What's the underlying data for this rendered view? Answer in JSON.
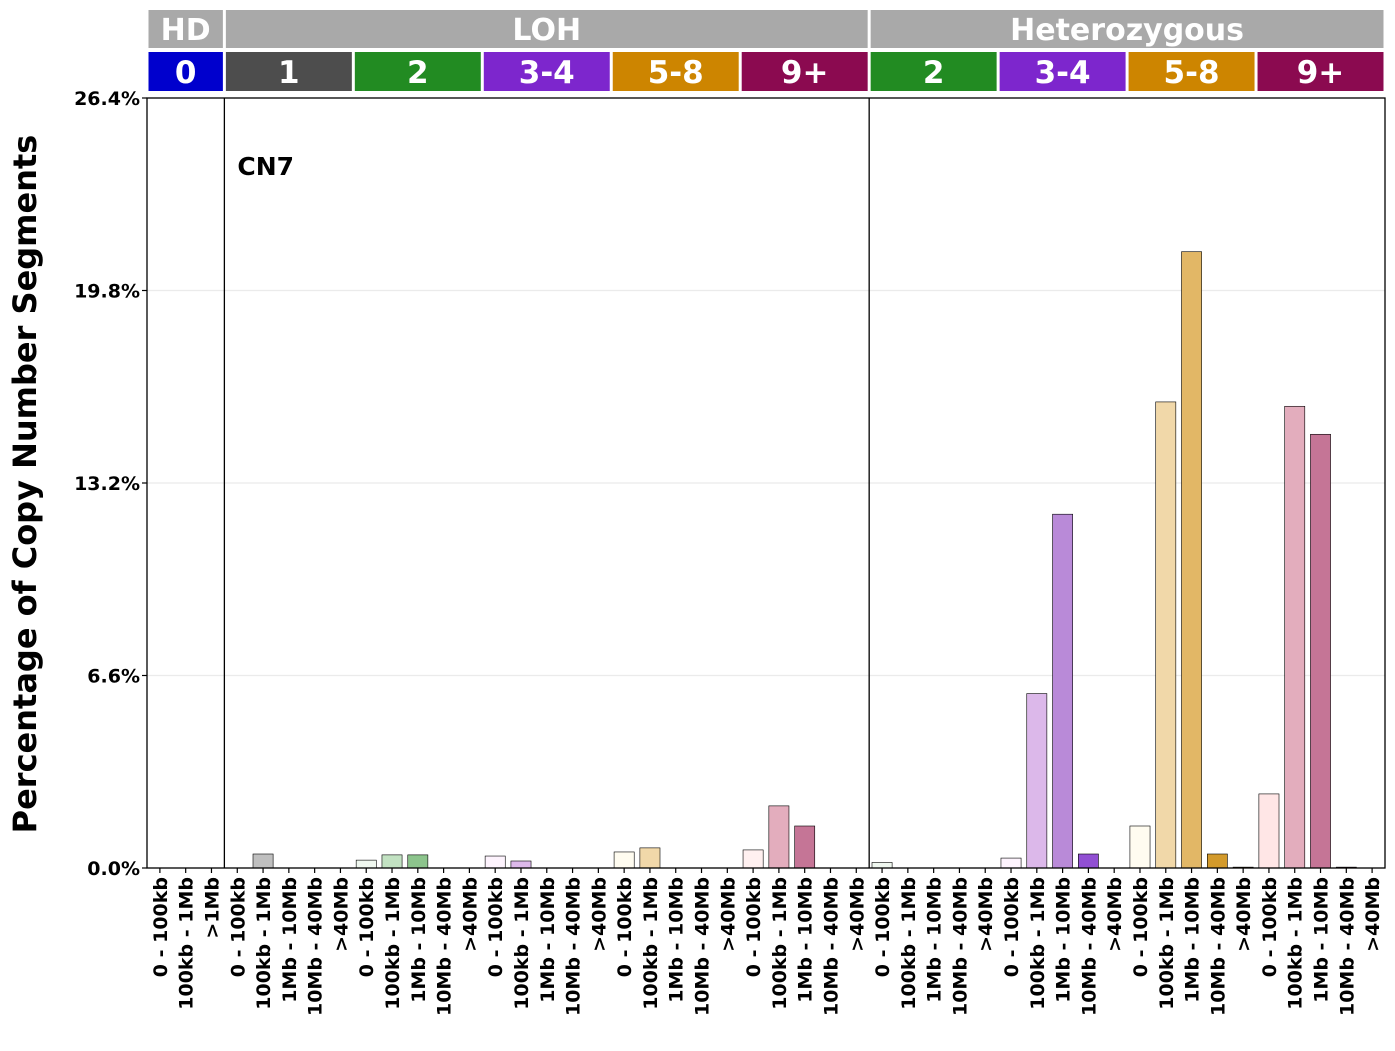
{
  "chart_data": {
    "type": "bar",
    "ylabel": "Percentage of Copy Number Segments",
    "annotation": "CN7",
    "ylim": [
      0,
      26.4
    ],
    "y_ticks": [
      "0.0%",
      "6.6%",
      "13.2%",
      "19.8%",
      "26.4%"
    ],
    "y_tick_values": [
      0,
      6.6,
      13.2,
      19.8,
      26.4
    ],
    "grid": "horizontal",
    "legend": "none",
    "top_strips": [
      {
        "label": "HD",
        "color": "#a9a9a9",
        "count": 3
      },
      {
        "label": "LOH",
        "color": "#a9a9a9",
        "count": 25
      },
      {
        "label": "Heterozygous",
        "color": "#a9a9a9",
        "count": 20
      }
    ],
    "cn_strips": [
      {
        "label": "0",
        "color": "#0000cd",
        "count": 3
      },
      {
        "label": "1",
        "color": "#4d4d4d",
        "count": 5
      },
      {
        "label": "2",
        "color": "#228b22",
        "count": 5
      },
      {
        "label": "3-4",
        "color": "#7d26cd",
        "count": 5
      },
      {
        "label": "5-8",
        "color": "#cd8500",
        "count": 5
      },
      {
        "label": "9+",
        "color": "#8b0a50",
        "count": 5
      },
      {
        "label": "2",
        "color": "#228b22",
        "count": 5
      },
      {
        "label": "3-4",
        "color": "#7d26cd",
        "count": 5
      },
      {
        "label": "5-8",
        "color": "#cd8500",
        "count": 5
      },
      {
        "label": "9+",
        "color": "#8b0a50",
        "count": 5
      }
    ],
    "categories": [
      "0 - 100kb",
      "100kb - 1Mb",
      ">1Mb",
      "0 - 100kb",
      "100kb - 1Mb",
      "1Mb - 10Mb",
      "10Mb - 40Mb",
      ">40Mb",
      "0 - 100kb",
      "100kb - 1Mb",
      "1Mb - 10Mb",
      "10Mb - 40Mb",
      ">40Mb",
      "0 - 100kb",
      "100kb - 1Mb",
      "1Mb - 10Mb",
      "10Mb - 40Mb",
      ">40Mb",
      "0 - 100kb",
      "100kb - 1Mb",
      "1Mb - 10Mb",
      "10Mb - 40Mb",
      ">40Mb",
      "0 - 100kb",
      "100kb - 1Mb",
      "1Mb - 10Mb",
      "10Mb - 40Mb",
      ">40Mb",
      "0 - 100kb",
      "100kb - 1Mb",
      "1Mb - 10Mb",
      "10Mb - 40Mb",
      ">40Mb",
      "0 - 100kb",
      "100kb - 1Mb",
      "1Mb - 10Mb",
      "10Mb - 40Mb",
      ">40Mb",
      "0 - 100kb",
      "100kb - 1Mb",
      "1Mb - 10Mb",
      "10Mb - 40Mb",
      ">40Mb",
      "0 - 100kb",
      "100kb - 1Mb",
      "1Mb - 10Mb",
      "10Mb - 40Mb",
      ">40Mb"
    ],
    "values": [
      0,
      0,
      0,
      0,
      0.48,
      0,
      0,
      0,
      0.27,
      0.45,
      0.45,
      0,
      0,
      0.41,
      0.24,
      0,
      0,
      0,
      0.55,
      0.69,
      0,
      0,
      0,
      0.62,
      2.13,
      1.44,
      0,
      0,
      0.19,
      0,
      0,
      0,
      0,
      0.34,
      5.98,
      12.13,
      0.48,
      0,
      1.44,
      15.98,
      21.13,
      0.48,
      0.03,
      2.54,
      15.83,
      14.87,
      0.03,
      0
    ],
    "bar_colors": [
      "#ffffff",
      "#ffffff",
      "#ffffff",
      "#f2f2f2",
      "#bfbfbf",
      "#8c8c8c",
      "#595959",
      "#262626",
      "#f0f8f0",
      "#c2e2c2",
      "#8cc48c",
      "#3d9a3d",
      "#176117",
      "#fdf3fd",
      "#dcb8ea",
      "#b98ad8",
      "#914fd3",
      "#5f1c9b",
      "#fffcf0",
      "#f1d8a9",
      "#e2b766",
      "#d39a2b",
      "#a46a00",
      "#fff0f0",
      "#e3adbd",
      "#c57596",
      "#a62d65",
      "#680838",
      "#f0f8f0",
      "#c2e2c2",
      "#8cc48c",
      "#3d9a3d",
      "#176117",
      "#fdf3fd",
      "#dcb8ea",
      "#b98ad8",
      "#914fd3",
      "#5f1c9b",
      "#fffcf0",
      "#f1d8a9",
      "#e2b766",
      "#d39a2b",
      "#a46a00",
      "#ffe6e6",
      "#e3adbd",
      "#c57596",
      "#a62d65",
      "#680838"
    ]
  }
}
